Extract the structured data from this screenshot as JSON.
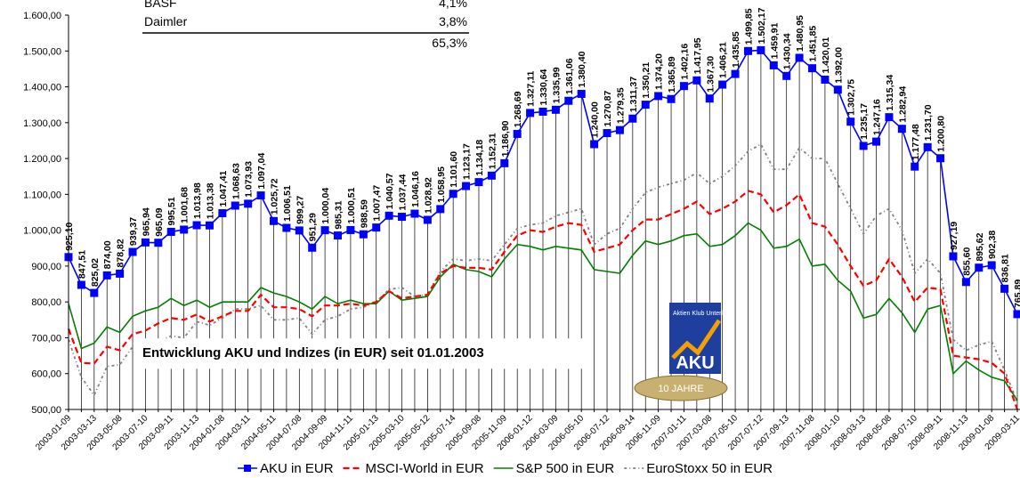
{
  "chart_data": {
    "type": "line",
    "annotation": "Entwicklung AKU und Indizes (in EUR) seit 01.01.2003",
    "overlay_table": {
      "rows": [
        [
          "BASF",
          "4,1%"
        ],
        [
          "Daimler",
          "3,8%"
        ]
      ],
      "total": "65,3%"
    },
    "logo": {
      "name": "Aktien Klub Unterland",
      "short": "AKU",
      "badge": "10 JAHRE"
    },
    "categories": [
      "2003-01-09",
      null,
      "2003-03-13",
      null,
      "2003-05-08",
      null,
      "2003-07-10",
      null,
      "2003-09-11",
      null,
      "2003-11-13",
      null,
      "2004-01-08",
      null,
      "2004-03-11",
      null,
      "2004-05-11",
      null,
      "2004-07-08",
      null,
      "2004-09-09",
      null,
      "2004-11-11",
      null,
      "2005-01-13",
      null,
      "2005-03-10",
      null,
      "2005-05-12",
      null,
      "2005-07-14",
      null,
      "2005-09-08",
      null,
      "2005-11-09",
      null,
      "2006-01-12",
      null,
      "2006-03-09",
      null,
      "2006-05-10",
      null,
      "2006-07-12",
      null,
      "2006-09-14",
      null,
      "2006-11-09",
      null,
      "2007-01-11",
      null,
      "2007-03-08",
      null,
      "2007-05-10",
      null,
      "2007-07-12",
      null,
      "2007-09-13",
      null,
      "2007-11-08",
      null,
      "2008-01-10",
      null,
      "2008-03-13",
      null,
      "2008-05-08",
      null,
      "2008-07-10",
      null,
      "2008-09-11",
      null,
      "2008-11-13",
      null,
      "2009-01-08",
      null,
      "2009-03-11"
    ],
    "ylim": [
      500,
      1600
    ],
    "yticks": [
      {
        "value": 500,
        "label": "500,00"
      },
      {
        "value": 600,
        "label": "600,00"
      },
      {
        "value": 700,
        "label": "700,00"
      },
      {
        "value": 800,
        "label": "800,00"
      },
      {
        "value": 900,
        "label": "900,00"
      },
      {
        "value": 1000,
        "label": "1.000,00"
      },
      {
        "value": 1100,
        "label": "1.100,00"
      },
      {
        "value": 1200,
        "label": "1.200,00"
      },
      {
        "value": 1300,
        "label": "1.300,00"
      },
      {
        "value": 1400,
        "label": "1.400,00"
      },
      {
        "value": 1500,
        "label": "1.500,00"
      },
      {
        "value": 1600,
        "label": "1.600,00"
      }
    ],
    "grid": false,
    "legend": "bottom",
    "series": [
      {
        "name": "AKU in EUR",
        "color": "#0000ff",
        "style": "marker",
        "values": [
          925.1,
          847.51,
          825.02,
          874.0,
          878.82,
          939.37,
          965.94,
          965.09,
          995.51,
          1001.68,
          1013.98,
          1013.38,
          1047.41,
          1068.63,
          1073.93,
          1097.04,
          1025.72,
          1006.51,
          999.27,
          951.29,
          1000.04,
          985.31,
          1000.51,
          988.59,
          1007.47,
          1040.57,
          1037.44,
          1046.16,
          1028.92,
          1058.95,
          1101.6,
          1123.17,
          1134.18,
          1152.31,
          1186.9,
          1268.69,
          1327.11,
          1330.64,
          1335.99,
          1361.06,
          1380.4,
          1240.0,
          1270.87,
          1279.35,
          1311.37,
          1350.21,
          1374.2,
          1365.89,
          1402.16,
          1417.95,
          1367.3,
          1406.21,
          1435.85,
          1499.85,
          1502.17,
          1459.91,
          1430.34,
          1480.95,
          1451.85,
          1420.01,
          1392.0,
          1302.75,
          1235.17,
          1247.16,
          1315.34,
          1282.94,
          1177.48,
          1231.7,
          1200.8,
          927.19,
          855.6,
          895.62,
          902.38,
          836.81,
          765.89
        ],
        "value_labels": [
          "925,10",
          "847,51",
          "825,02",
          "874,00",
          "878,82",
          "939,37",
          "965,94",
          "965,09",
          "995,51",
          "1.001,68",
          "1.013,98",
          "1.013,38",
          "1.047,41",
          "1.068,63",
          "1.073,93",
          "1.097,04",
          "1.025,72",
          "1.006,51",
          "999,27",
          "951,29",
          "1.000,04",
          "985,31",
          "1.000,51",
          "988,59",
          "1.007,47",
          "1.040,57",
          "1.037,44",
          "1.046,16",
          "1.028,92",
          "1.058,95",
          "1.101,60",
          "1.123,17",
          "1.134,18",
          "1.152,31",
          "1.186,90",
          "1.268,69",
          "1.327,11",
          "1.330,64",
          "1.335,99",
          "1.361,06",
          "1.380,40",
          "1.240,00",
          "1.270,87",
          "1.279,35",
          "1.311,37",
          "1.350,21",
          "1.374,20",
          "1.365,89",
          "1.402,16",
          "1.417,95",
          "1.367,30",
          "1.406,21",
          "1.435,85",
          "1.499,85",
          "1.502,17",
          "1.459,91",
          "1.430,34",
          "1.480,95",
          "1.451,85",
          "1.420,01",
          "1.392,00",
          "1.302,75",
          "1.235,17",
          "1.247,16",
          "1.315,34",
          "1.282,94",
          "1.177,48",
          "1.231,70",
          "1.200,80",
          "927,19",
          "855,60",
          "895,62",
          "902,38",
          "836,81",
          "765,89"
        ]
      },
      {
        "name": "MSCI-World in EUR",
        "color": "#ff0000",
        "style": "dash",
        "values": [
          725,
          630,
          628,
          675,
          665,
          710,
          720,
          740,
          755,
          750,
          765,
          745,
          760,
          775,
          775,
          820,
          785,
          785,
          780,
          760,
          790,
          790,
          795,
          790,
          800,
          830,
          810,
          815,
          820,
          880,
          900,
          895,
          895,
          890,
          940,
          985,
          1000,
          995,
          1010,
          1020,
          1015,
          940,
          950,
          960,
          1000,
          1030,
          1030,
          1045,
          1060,
          1080,
          1045,
          1060,
          1080,
          1110,
          1100,
          1050,
          1070,
          1100,
          1020,
          1010,
          960,
          900,
          845,
          860,
          920,
          870,
          800,
          840,
          835,
          650,
          645,
          640,
          630,
          600,
          500
        ]
      },
      {
        "name": "S&P 500 in EUR",
        "color": "#008000",
        "style": "solid",
        "values": [
          795,
          670,
          685,
          730,
          715,
          760,
          775,
          785,
          810,
          790,
          805,
          785,
          800,
          800,
          800,
          840,
          825,
          815,
          800,
          780,
          815,
          795,
          805,
          795,
          795,
          830,
          805,
          810,
          815,
          870,
          905,
          890,
          885,
          870,
          920,
          960,
          955,
          945,
          955,
          950,
          945,
          890,
          885,
          880,
          930,
          970,
          960,
          970,
          985,
          990,
          955,
          960,
          985,
          1020,
          1000,
          950,
          955,
          975,
          900,
          905,
          860,
          830,
          755,
          765,
          810,
          770,
          715,
          780,
          790,
          600,
          635,
          610,
          590,
          580,
          525
        ]
      },
      {
        "name": "EuroStoxx 50 in EUR",
        "color": "#808080",
        "style": "dashdot",
        "values": [
          695,
          590,
          540,
          620,
          625,
          675,
          665,
          690,
          705,
          700,
          745,
          735,
          755,
          780,
          780,
          790,
          750,
          750,
          755,
          710,
          750,
          760,
          780,
          785,
          800,
          835,
          840,
          815,
          820,
          885,
          920,
          915,
          920,
          915,
          960,
          1005,
          1015,
          1020,
          1040,
          1050,
          1060,
          960,
          990,
          1005,
          1060,
          1105,
          1120,
          1130,
          1140,
          1160,
          1130,
          1150,
          1180,
          1220,
          1240,
          1170,
          1170,
          1230,
          1200,
          1200,
          1130,
          1060,
          990,
          1040,
          1060,
          1000,
          880,
          920,
          880,
          695,
          665,
          680,
          690,
          610,
          520
        ]
      }
    ]
  }
}
